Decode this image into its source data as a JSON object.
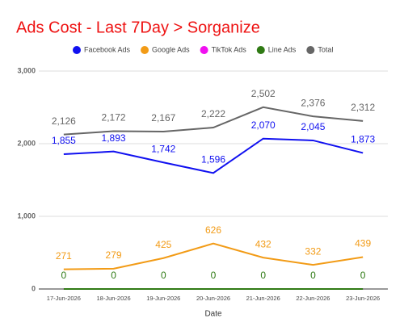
{
  "chart_data": {
    "type": "line",
    "title": "Ads Cost - Last 7Day > Sorganize",
    "x_label": "Date",
    "categories": [
      "17-Jun-2026",
      "18-Jun-2026",
      "19-Jun-2026",
      "20-Jun-2026",
      "21-Jun-2026",
      "22-Jun-2026",
      "23-Jun-2026"
    ],
    "series": [
      {
        "name": "Facebook Ads",
        "color": "#1010f0",
        "values": [
          1855,
          1893,
          1742,
          1596,
          2070,
          2045,
          1873
        ],
        "value_labels": [
          "1,855",
          "1,893",
          "1,742",
          "1,596",
          "2,070",
          "2,045",
          "1,873"
        ],
        "data_labels": true
      },
      {
        "name": "Google Ads",
        "color": "#f29b16",
        "values": [
          271,
          279,
          425,
          626,
          432,
          332,
          439
        ],
        "data_labels": true
      },
      {
        "name": "TikTok Ads",
        "color": "#f010f0",
        "values": [
          0,
          0,
          0,
          0,
          0,
          0,
          0
        ],
        "data_labels": false
      },
      {
        "name": "Line Ads",
        "color": "#2f7a14",
        "values": [
          0,
          0,
          0,
          0,
          0,
          0,
          0
        ],
        "data_labels": true
      },
      {
        "name": "Total",
        "color": "#666666",
        "values": [
          2126,
          2172,
          2167,
          2222,
          2502,
          2376,
          2312
        ],
        "value_labels": [
          "2,126",
          "2,172",
          "2,167",
          "2,222",
          "2,502",
          "2,376",
          "2,312"
        ],
        "data_labels": true
      }
    ],
    "ylim": [
      0,
      3000
    ],
    "yticks": [
      0,
      {
        "value": 1000,
        "label": "1,000"
      },
      {
        "value": 2000,
        "label": "2,000"
      },
      {
        "value": 3000,
        "label": "3,000"
      }
    ],
    "grid": true,
    "legend": "top"
  }
}
